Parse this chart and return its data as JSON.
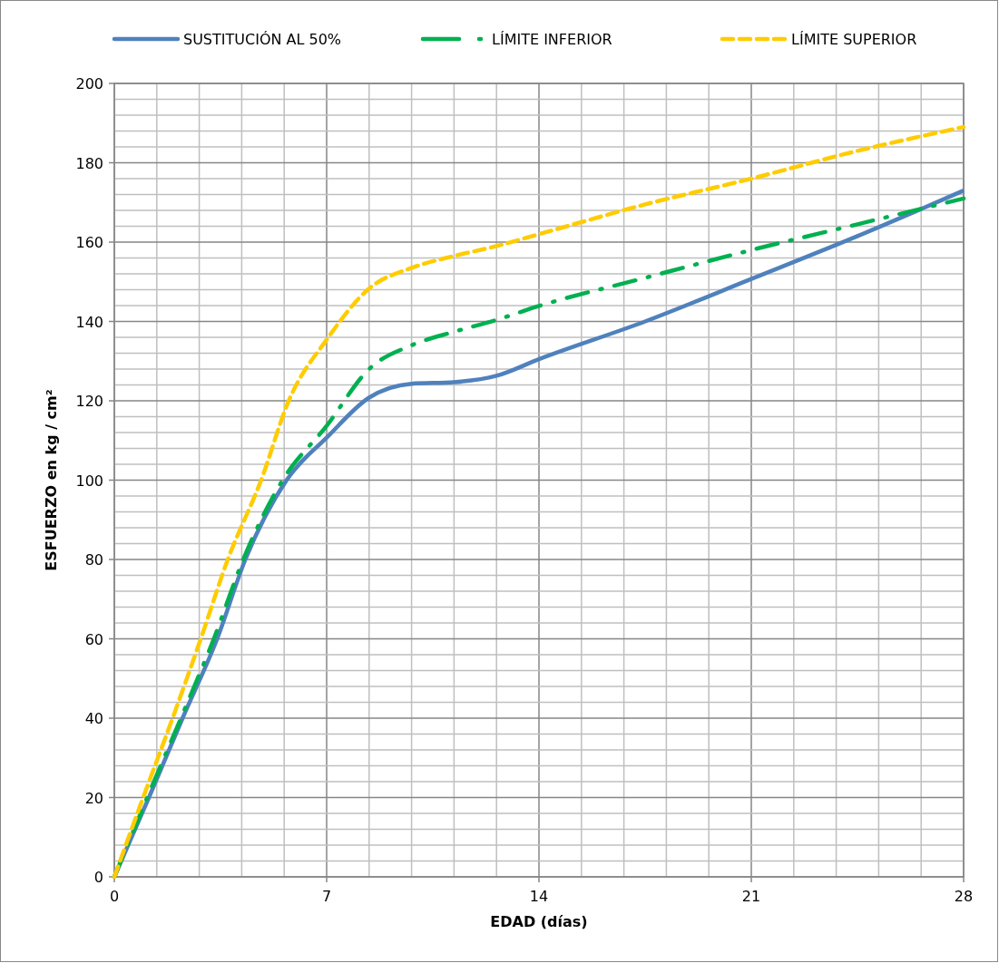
{
  "chart_data": {
    "type": "line",
    "xlabel": "EDAD (días)",
    "ylabel": "ESFUERZO en kg / cm²",
    "xlim": [
      0,
      28
    ],
    "ylim": [
      0,
      200
    ],
    "xticks": [
      0,
      {
        "value": 1.4,
        "label": null
      },
      {
        "value": 2.8,
        "label": null
      },
      {
        "value": 4.2,
        "label": null
      },
      {
        "value": 5.6,
        "label": null
      },
      7,
      {
        "value": 8.4,
        "label": null
      },
      {
        "value": 9.8,
        "label": null
      },
      {
        "value": 11.2,
        "label": null
      },
      {
        "value": 12.6,
        "label": null
      },
      14,
      {
        "value": 15.4,
        "label": null
      },
      {
        "value": 16.8,
        "label": null
      },
      {
        "value": 18.2,
        "label": null
      },
      {
        "value": 19.6,
        "label": null
      },
      21,
      {
        "value": 22.4,
        "label": null
      },
      {
        "value": 23.8,
        "label": null
      },
      {
        "value": 25.2,
        "label": null
      },
      {
        "value": 26.6,
        "label": null
      },
      28
    ],
    "yticks": [
      0,
      {
        "value": 4,
        "label": null
      },
      {
        "value": 8,
        "label": null
      },
      {
        "value": 12,
        "label": null
      },
      {
        "value": 16,
        "label": null
      },
      20,
      {
        "value": 24,
        "label": null
      },
      {
        "value": 28,
        "label": null
      },
      {
        "value": 32,
        "label": null
      },
      {
        "value": 36,
        "label": null
      },
      40,
      {
        "value": 44,
        "label": null
      },
      {
        "value": 48,
        "label": null
      },
      {
        "value": 52,
        "label": null
      },
      {
        "value": 56,
        "label": null
      },
      60,
      {
        "value": 64,
        "label": null
      },
      {
        "value": 68,
        "label": null
      },
      {
        "value": 72,
        "label": null
      },
      {
        "value": 76,
        "label": null
      },
      80,
      {
        "value": 84,
        "label": null
      },
      {
        "value": 88,
        "label": null
      },
      {
        "value": 92,
        "label": null
      },
      {
        "value": 96,
        "label": null
      },
      100,
      {
        "value": 104,
        "label": null
      },
      {
        "value": 108,
        "label": null
      },
      {
        "value": 112,
        "label": null
      },
      {
        "value": 116,
        "label": null
      },
      120,
      {
        "value": 124,
        "label": null
      },
      {
        "value": 128,
        "label": null
      },
      {
        "value": 132,
        "label": null
      },
      {
        "value": 136,
        "label": null
      },
      140,
      {
        "value": 144,
        "label": null
      },
      {
        "value": 148,
        "label": null
      },
      {
        "value": 152,
        "label": null
      },
      {
        "value": 156,
        "label": null
      },
      160,
      {
        "value": 164,
        "label": null
      },
      {
        "value": 168,
        "label": null
      },
      {
        "value": 172,
        "label": null
      },
      {
        "value": 176,
        "label": null
      },
      180,
      {
        "value": 184,
        "label": null
      },
      {
        "value": 188,
        "label": null
      },
      {
        "value": 192,
        "label": null
      },
      {
        "value": 196,
        "label": null
      },
      200
    ],
    "grid": true,
    "legend": "top",
    "marker": "none",
    "series": [
      {
        "name": "SUSTITUCIÓN AL 50%",
        "color": "#4f81bd",
        "line_style": "solid",
        "x": [
          0,
          1.14,
          2.25,
          3.39,
          4.32,
          5.68,
          7,
          8.4,
          9.8,
          11.2,
          12.6,
          14,
          17.5,
          21,
          24.5,
          28
        ],
        "values": [
          0,
          20,
          40,
          60,
          80,
          100,
          110.7,
          120.8,
          124.3,
          124.7,
          126.3,
          130.5,
          140,
          150.7,
          161.5,
          173
        ]
      },
      {
        "name": "LÍMITE INFERIOR",
        "color": "#00b050",
        "line_style": "dashdot",
        "x": [
          0,
          1.14,
          2.25,
          3.28,
          4.25,
          5.55,
          7,
          8.4,
          9.8,
          11.2,
          12.6,
          14,
          17.5,
          21,
          24.5,
          28
        ],
        "values": [
          0,
          21,
          41,
          60,
          80,
          100,
          113.7,
          128,
          134,
          137.4,
          140.4,
          143.9,
          151,
          158,
          164.5,
          171
        ]
      },
      {
        "name": "LÍMITE SUPERIOR",
        "color": "#ffcc00",
        "line_style": "dashed",
        "x": [
          0,
          0.95,
          1.92,
          2.85,
          3.74,
          4.84,
          5.75,
          7,
          8.4,
          9.8,
          11.2,
          12.6,
          14,
          17.5,
          21,
          24.5,
          28
        ],
        "values": [
          0,
          20,
          40,
          60,
          80,
          100,
          120,
          135.4,
          148.3,
          153.5,
          156.5,
          159,
          162,
          169.5,
          176,
          183,
          189
        ]
      }
    ]
  }
}
